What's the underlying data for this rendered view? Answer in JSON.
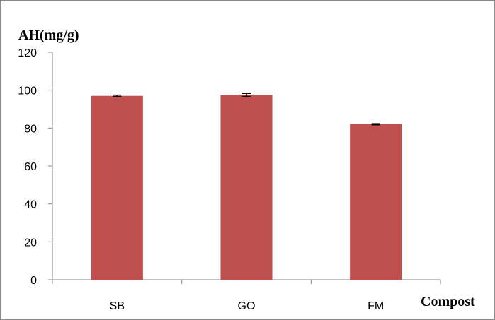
{
  "chart_data": {
    "type": "bar",
    "categories": [
      "SB",
      "GO",
      "FM"
    ],
    "series": [
      {
        "values": [
          97,
          97.5,
          82
        ],
        "errors": [
          0.4,
          0.8,
          0.3
        ],
        "color": "#c0504d"
      }
    ],
    "ylabel": "AH(mg/g)",
    "xlabel": "Compost",
    "ylim": [
      0,
      120
    ],
    "yticks": [
      0,
      20,
      40,
      60,
      80,
      100,
      120
    ],
    "grid": false,
    "legend": "none"
  }
}
